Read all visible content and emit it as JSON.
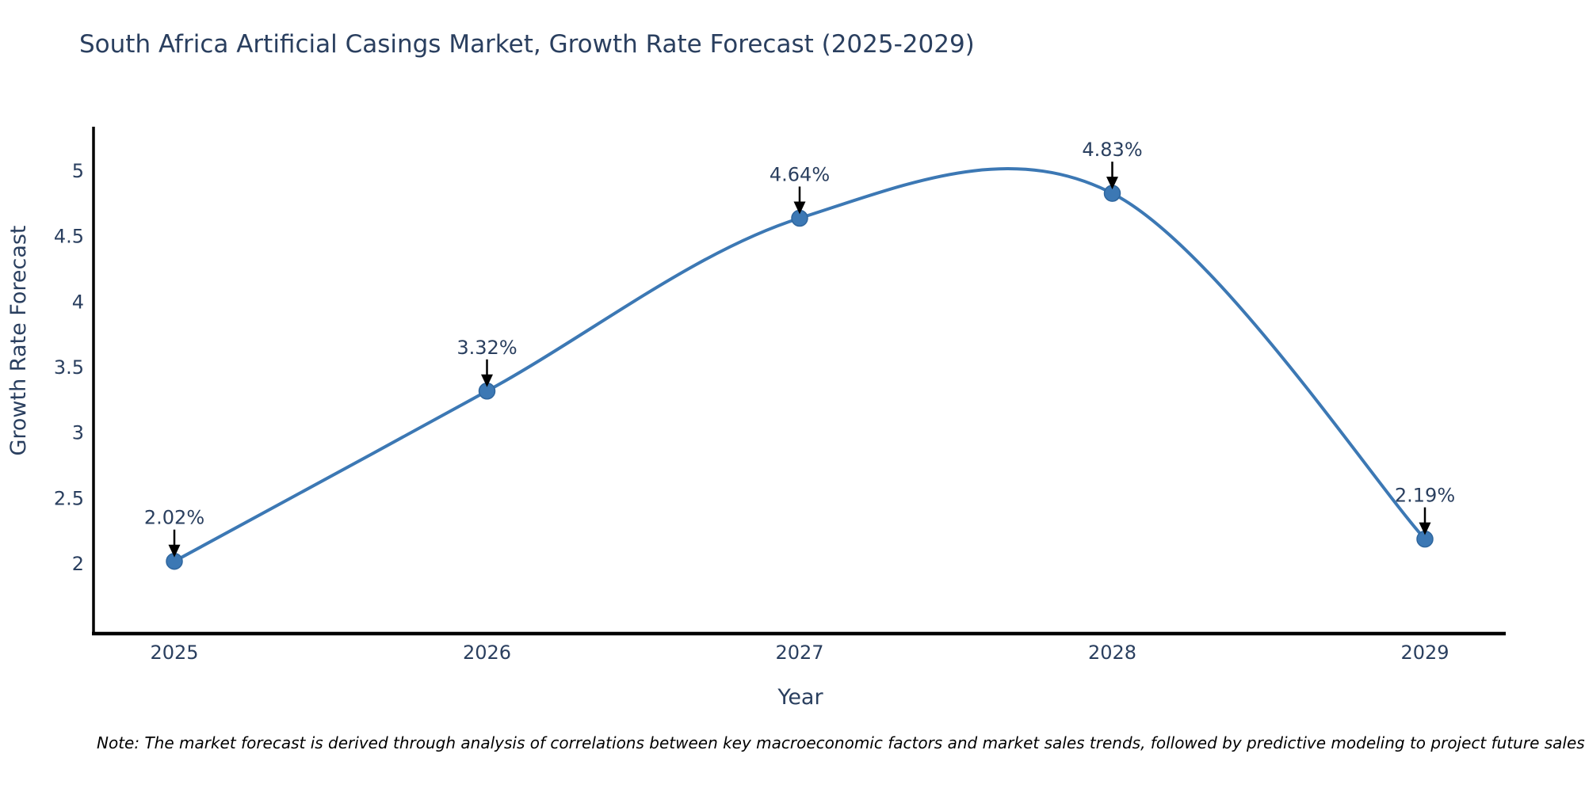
{
  "chart_data": {
    "type": "line",
    "title": "South Africa Artificial Casings Market, Growth Rate Forecast (2025-2029)",
    "xlabel": "Year",
    "ylabel": "Growth Rate Forecast",
    "categories": [
      "2025",
      "2026",
      "2027",
      "2028",
      "2029"
    ],
    "series": [
      {
        "name": "Growth Rate Forecast",
        "values": [
          2.02,
          3.32,
          4.64,
          4.83,
          2.19
        ]
      }
    ],
    "point_labels": [
      "2.02%",
      "3.32%",
      "4.64%",
      "4.83%",
      "2.19%"
    ],
    "y_ticks": [
      2,
      2.5,
      3,
      3.5,
      4,
      4.5,
      5
    ],
    "ylim": [
      1.47,
      5.35
    ],
    "line_shape": "spline",
    "grid": false,
    "legend_position": "none",
    "colors": {
      "line": "#3C78B4",
      "marker_fill": "#3C78B4",
      "marker_edge": "#2F669E",
      "label_text": "#2A3F5F",
      "axis_line": "#000000",
      "arrow": "#000000",
      "note_text": "#000000"
    },
    "note": "Note: The market forecast is derived through analysis of correlations between key macroeconomic factors and market sales trends, followed by predictive modeling to project future sales"
  }
}
